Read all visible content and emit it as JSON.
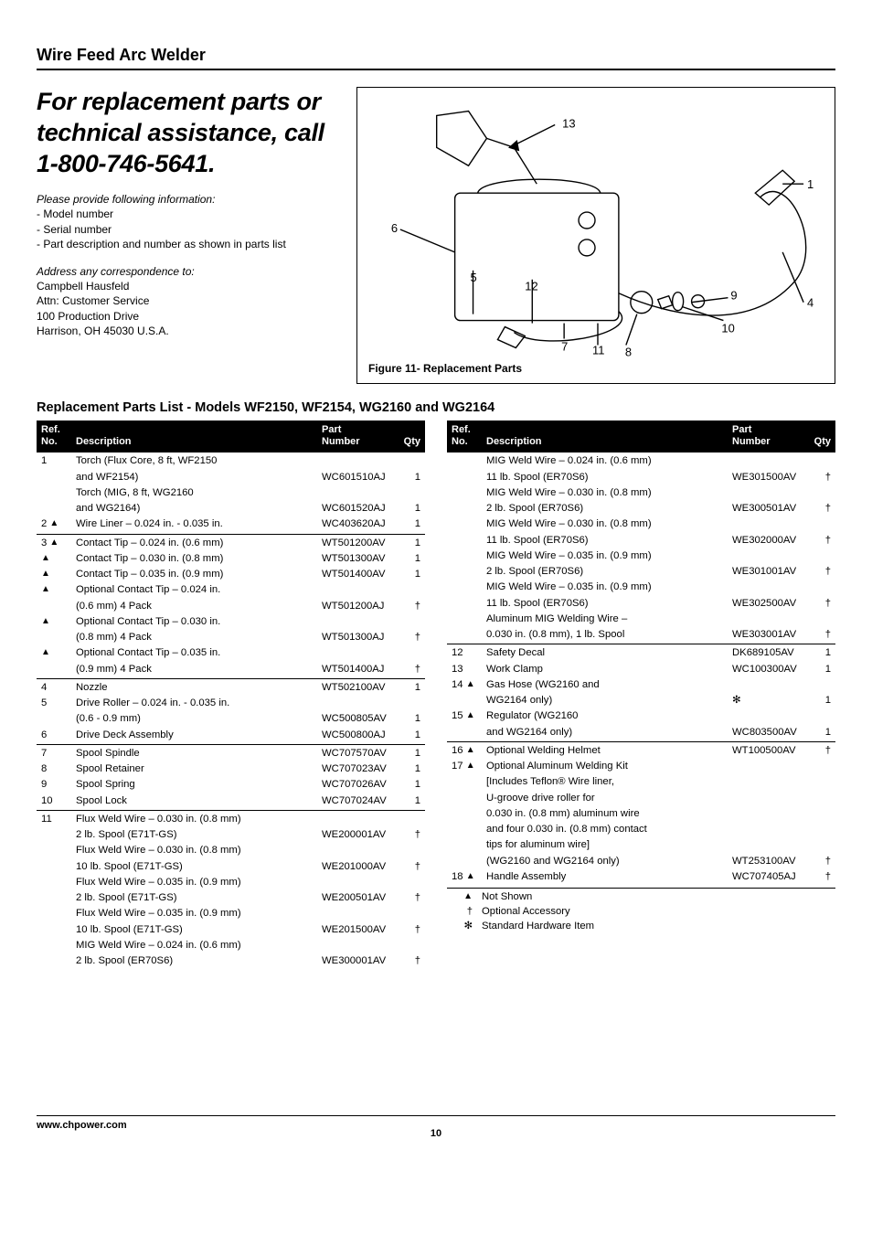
{
  "header": {
    "title": "Wire Feed Arc Welder"
  },
  "callout": {
    "title": "For replacement parts or technical assistance, call 1-800-746-5641.",
    "info_lead": "Please provide following information:",
    "info_items": [
      "Model number",
      "Serial number",
      "Part description and number as shown in parts list"
    ],
    "addr_lead": "Address any correspondence to:",
    "addr_lines": [
      "Campbell Hausfeld",
      "Attn: Customer Service",
      "100 Production Drive",
      "Harrison, OH 45030  U.S.A."
    ]
  },
  "figure": {
    "caption": "Figure 11- Replacement Parts",
    "labels": [
      "1",
      "4",
      "5",
      "6",
      "7",
      "8",
      "9",
      "10",
      "11",
      "12",
      "13"
    ]
  },
  "section_title": "Replacement Parts List - Models WF2150, WF2154, WG2160 and WG2164",
  "columns_header": {
    "ref": "Ref.\nNo.",
    "desc": "Description",
    "part": "Part\nNumber",
    "qty": "Qty"
  },
  "left_rows": [
    {
      "ref": "1",
      "tri": false,
      "desc": "Torch (Flux Core, 8 ft, WF2150",
      "part": "",
      "qty": "",
      "sep": true
    },
    {
      "ref": "",
      "tri": false,
      "desc": "and WF2154)",
      "part": "WC601510AJ",
      "qty": "1"
    },
    {
      "ref": "",
      "tri": false,
      "desc": "Torch (MIG, 8 ft, WG2160",
      "part": "",
      "qty": ""
    },
    {
      "ref": "",
      "tri": false,
      "desc": "and WG2164)",
      "part": "WC601520AJ",
      "qty": "1"
    },
    {
      "ref": "2",
      "tri": true,
      "desc": "Wire Liner – 0.024 in. - 0.035 in.",
      "part": "WC403620AJ",
      "qty": "1",
      "presep": true
    },
    {
      "ref": "3",
      "tri": true,
      "desc": "Contact Tip – 0.024 in. (0.6 mm)",
      "part": "WT501200AV",
      "qty": "1",
      "sep": true
    },
    {
      "ref": "",
      "tri": true,
      "desc": "Contact Tip – 0.030 in. (0.8 mm)",
      "part": "WT501300AV",
      "qty": "1"
    },
    {
      "ref": "",
      "tri": true,
      "desc": "Contact Tip – 0.035 in. (0.9 mm)",
      "part": "WT501400AV",
      "qty": "1"
    },
    {
      "ref": "",
      "tri": true,
      "desc": "Optional Contact Tip – 0.024 in.",
      "part": "",
      "qty": ""
    },
    {
      "ref": "",
      "tri": false,
      "desc": "(0.6 mm) 4 Pack",
      "part": "WT501200AJ",
      "qty": "†"
    },
    {
      "ref": "",
      "tri": true,
      "desc": "Optional Contact Tip – 0.030 in.",
      "part": "",
      "qty": ""
    },
    {
      "ref": "",
      "tri": false,
      "desc": "(0.8 mm) 4 Pack",
      "part": "WT501300AJ",
      "qty": "†"
    },
    {
      "ref": "",
      "tri": true,
      "desc": "Optional Contact Tip – 0.035 in.",
      "part": "",
      "qty": ""
    },
    {
      "ref": "",
      "tri": false,
      "desc": "(0.9 mm) 4 Pack",
      "part": "WT501400AJ",
      "qty": "†",
      "presep": true
    },
    {
      "ref": "4",
      "tri": false,
      "desc": "Nozzle",
      "part": "WT502100AV",
      "qty": "1",
      "sep": true
    },
    {
      "ref": "5",
      "tri": false,
      "desc": "Drive Roller – 0.024 in. - 0.035 in.",
      "part": "",
      "qty": ""
    },
    {
      "ref": "",
      "tri": false,
      "desc": "(0.6 - 0.9 mm)",
      "part": "WC500805AV",
      "qty": "1"
    },
    {
      "ref": "6",
      "tri": false,
      "desc": "Drive Deck Assembly",
      "part": "WC500800AJ",
      "qty": "1",
      "presep": true
    },
    {
      "ref": "7",
      "tri": false,
      "desc": "Spool Spindle",
      "part": "WC707570AV",
      "qty": "1",
      "sep": true
    },
    {
      "ref": "8",
      "tri": false,
      "desc": "Spool Retainer",
      "part": "WC707023AV",
      "qty": "1"
    },
    {
      "ref": "9",
      "tri": false,
      "desc": "Spool Spring",
      "part": "WC707026AV",
      "qty": "1"
    },
    {
      "ref": "10",
      "tri": false,
      "desc": "Spool Lock",
      "part": "WC707024AV",
      "qty": "1",
      "presep": true
    },
    {
      "ref": "11",
      "tri": false,
      "desc": "Flux Weld Wire – 0.030 in. (0.8 mm)",
      "part": "",
      "qty": "",
      "sep": true
    },
    {
      "ref": "",
      "tri": false,
      "desc": "2 lb. Spool (E71T-GS)",
      "part": "WE200001AV",
      "qty": "†"
    },
    {
      "ref": "",
      "tri": false,
      "desc": "Flux Weld Wire – 0.030 in. (0.8 mm)",
      "part": "",
      "qty": ""
    },
    {
      "ref": "",
      "tri": false,
      "desc": "10 lb. Spool (E71T-GS)",
      "part": "WE201000AV",
      "qty": "†"
    },
    {
      "ref": "",
      "tri": false,
      "desc": "Flux Weld Wire – 0.035 in. (0.9 mm)",
      "part": "",
      "qty": ""
    },
    {
      "ref": "",
      "tri": false,
      "desc": "2 lb. Spool (E71T-GS)",
      "part": "WE200501AV",
      "qty": "†"
    },
    {
      "ref": "",
      "tri": false,
      "desc": "Flux Weld Wire – 0.035 in. (0.9 mm)",
      "part": "",
      "qty": ""
    },
    {
      "ref": "",
      "tri": false,
      "desc": "10 lb. Spool (E71T-GS)",
      "part": "WE201500AV",
      "qty": "†"
    },
    {
      "ref": "",
      "tri": false,
      "desc": "MIG Weld Wire – 0.024 in. (0.6 mm)",
      "part": "",
      "qty": ""
    },
    {
      "ref": "",
      "tri": false,
      "desc": "2 lb. Spool (ER70S6)",
      "part": "WE300001AV",
      "qty": "†"
    }
  ],
  "right_rows": [
    {
      "ref": "",
      "tri": false,
      "desc": "MIG Weld Wire – 0.024 in. (0.6 mm)",
      "part": "",
      "qty": "",
      "sep": true
    },
    {
      "ref": "",
      "tri": false,
      "desc": "11 lb. Spool (ER70S6)",
      "part": "WE301500AV",
      "qty": "†"
    },
    {
      "ref": "",
      "tri": false,
      "desc": "MIG Weld Wire – 0.030 in. (0.8 mm)",
      "part": "",
      "qty": ""
    },
    {
      "ref": "",
      "tri": false,
      "desc": "2 lb. Spool (ER70S6)",
      "part": "WE300501AV",
      "qty": "†"
    },
    {
      "ref": "",
      "tri": false,
      "desc": "MIG Weld Wire – 0.030 in. (0.8 mm)",
      "part": "",
      "qty": ""
    },
    {
      "ref": "",
      "tri": false,
      "desc": "11 lb. Spool (ER70S6)",
      "part": "WE302000AV",
      "qty": "†"
    },
    {
      "ref": "",
      "tri": false,
      "desc": "MIG Weld Wire – 0.035 in. (0.9 mm)",
      "part": "",
      "qty": ""
    },
    {
      "ref": "",
      "tri": false,
      "desc": "2 lb. Spool (ER70S6)",
      "part": "WE301001AV",
      "qty": "†"
    },
    {
      "ref": "",
      "tri": false,
      "desc": "MIG Weld Wire – 0.035 in. (0.9 mm)",
      "part": "",
      "qty": ""
    },
    {
      "ref": "",
      "tri": false,
      "desc": "11 lb. Spool (ER70S6)",
      "part": "WE302500AV",
      "qty": "†"
    },
    {
      "ref": "",
      "tri": false,
      "desc": "Aluminum MIG Welding Wire –",
      "part": "",
      "qty": ""
    },
    {
      "ref": "",
      "tri": false,
      "desc": "0.030 in. (0.8 mm), 1 lb. Spool",
      "part": "WE303001AV",
      "qty": "†",
      "presep": true
    },
    {
      "ref": "12",
      "tri": false,
      "desc": "Safety Decal",
      "part": "DK689105AV",
      "qty": "1",
      "sep": true
    },
    {
      "ref": "13",
      "tri": false,
      "desc": "Work Clamp",
      "part": "WC100300AV",
      "qty": "1"
    },
    {
      "ref": "14",
      "tri": true,
      "desc": "Gas Hose (WG2160 and",
      "part": "",
      "qty": ""
    },
    {
      "ref": "",
      "tri": false,
      "desc": "WG2164 only)",
      "part": "✻",
      "qty": "1"
    },
    {
      "ref": "15",
      "tri": true,
      "desc": "Regulator (WG2160",
      "part": "",
      "qty": ""
    },
    {
      "ref": "",
      "tri": false,
      "desc": "and WG2164 only)",
      "part": "WC803500AV",
      "qty": "1",
      "presep": true
    },
    {
      "ref": "16",
      "tri": true,
      "desc": "Optional Welding Helmet",
      "part": "WT100500AV",
      "qty": "†",
      "sep": true
    },
    {
      "ref": "17",
      "tri": true,
      "desc": "Optional Aluminum Welding Kit",
      "part": "",
      "qty": ""
    },
    {
      "ref": "",
      "tri": false,
      "desc": "[Includes Teflon® Wire liner,",
      "part": "",
      "qty": ""
    },
    {
      "ref": "",
      "tri": false,
      "desc": "U-groove drive roller for",
      "part": "",
      "qty": ""
    },
    {
      "ref": "",
      "tri": false,
      "desc": "0.030 in. (0.8 mm) aluminum wire",
      "part": "",
      "qty": ""
    },
    {
      "ref": "",
      "tri": false,
      "desc": "and four 0.030 in. (0.8 mm) contact",
      "part": "",
      "qty": ""
    },
    {
      "ref": "",
      "tri": false,
      "desc": "tips for aluminum wire]",
      "part": "",
      "qty": ""
    },
    {
      "ref": "",
      "tri": false,
      "desc": "(WG2160 and WG2164 only)",
      "part": "WT253100AV",
      "qty": "†"
    },
    {
      "ref": "18",
      "tri": true,
      "desc": "Handle Assembly",
      "part": "WC707405AJ",
      "qty": "†",
      "presep": true
    }
  ],
  "legend": [
    {
      "sym": "▲",
      "text": "Not Shown"
    },
    {
      "sym": "†",
      "text": "Optional Accessory"
    },
    {
      "sym": "✻",
      "text": "Standard Hardware Item"
    }
  ],
  "footer": {
    "url": "www.chpower.com",
    "page": "10"
  }
}
